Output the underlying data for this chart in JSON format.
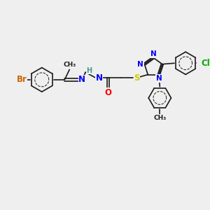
{
  "bg_color": "#efefef",
  "bond_color": "#1a1a1a",
  "atom_colors": {
    "N": "#0000ff",
    "O": "#ff0000",
    "S": "#cccc00",
    "Br": "#cc6600",
    "Cl": "#00aa00",
    "H": "#4a9a8a",
    "C": "#1a1a1a"
  },
  "bond_width": 1.2,
  "font_size": 8.5,
  "figsize": [
    3.0,
    3.0
  ],
  "dpi": 100
}
